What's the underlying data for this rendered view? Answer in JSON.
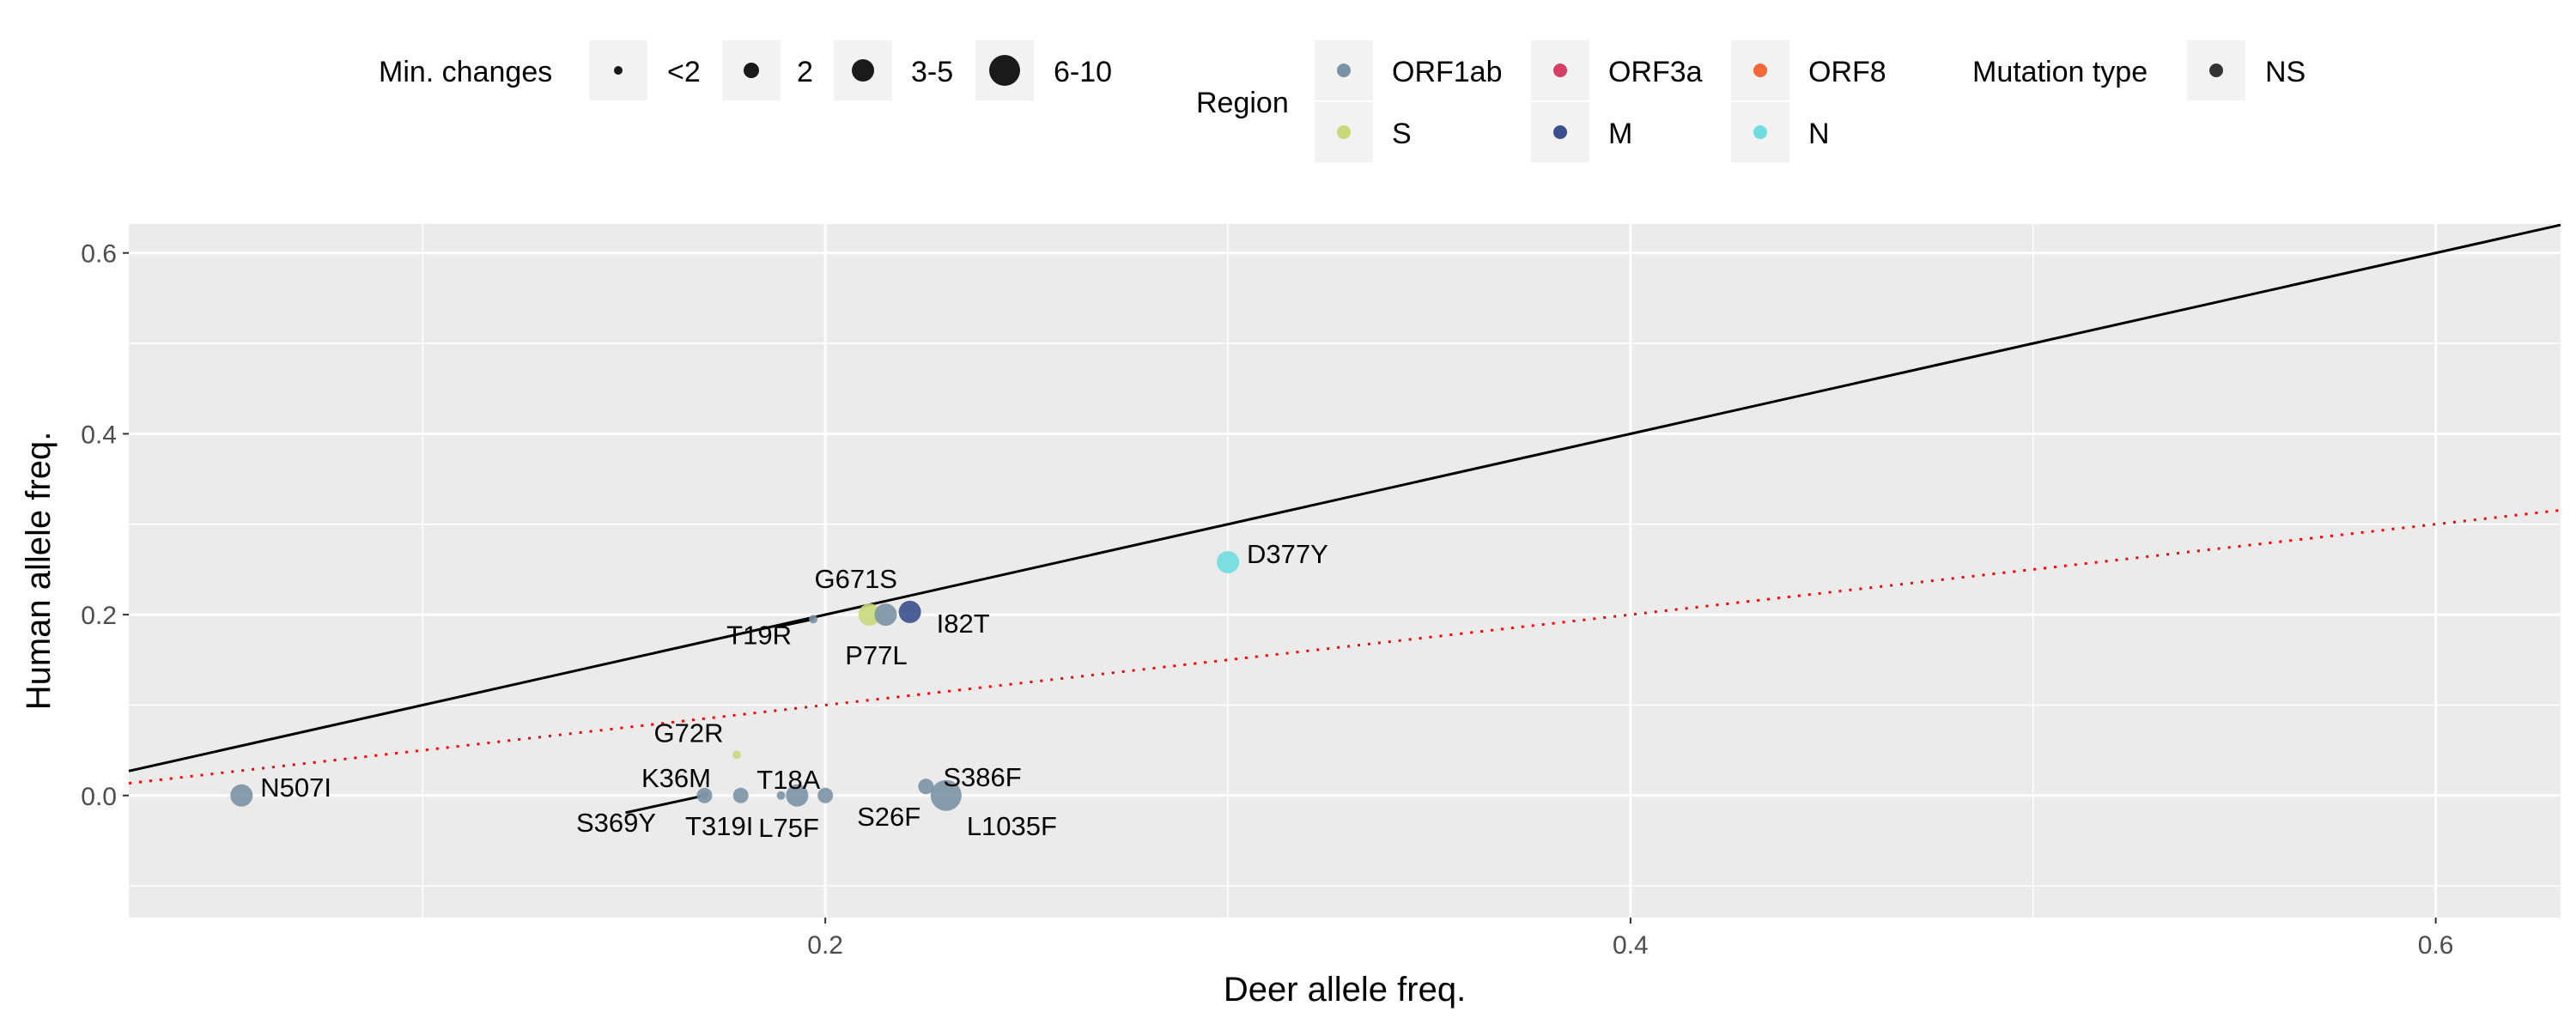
{
  "chart_data": {
    "type": "scatter",
    "xlabel": "Deer allele freq.",
    "ylabel": "Human allele freq.",
    "xlim": [
      0.027,
      0.631
    ],
    "ylim": [
      -0.135,
      0.632
    ],
    "x_ticks": [
      0.2,
      0.4,
      0.6
    ],
    "x_tick_labels": [
      "0.2",
      "0.4",
      "0.6"
    ],
    "y_ticks": [
      0.0,
      0.2,
      0.4,
      0.6
    ],
    "y_tick_labels": [
      "0.0",
      "0.2",
      "0.4",
      "0.6"
    ],
    "grid": true,
    "legend_position": "top",
    "reference_lines": [
      {
        "kind": "identity",
        "slope": 1,
        "intercept": 0,
        "color": "#000000",
        "style": "solid"
      },
      {
        "kind": "half",
        "slope": 0.5,
        "intercept": 0,
        "color": "#ff0000",
        "style": "dotted"
      }
    ],
    "legends": {
      "size": {
        "title": "Min. changes",
        "entries": [
          {
            "label": "<2",
            "radius": 5
          },
          {
            "label": "2",
            "radius": 9
          },
          {
            "label": "3-5",
            "radius": 13
          },
          {
            "label": "6-10",
            "radius": 18
          }
        ]
      },
      "color": {
        "title": "Region",
        "entries": [
          {
            "label": "ORF1ab",
            "color": "#7b93a6"
          },
          {
            "label": "ORF3a",
            "color": "#d53e64"
          },
          {
            "label": "ORF8",
            "color": "#f4673a"
          },
          {
            "label": "S",
            "color": "#c9d97a"
          },
          {
            "label": "M",
            "color": "#3a4f8c"
          },
          {
            "label": "N",
            "color": "#6fdde0"
          }
        ]
      },
      "shape": {
        "title": "Mutation type",
        "entries": [
          {
            "label": "NS",
            "color": "#333333"
          }
        ]
      }
    },
    "points": [
      {
        "label": "N507I",
        "x": 0.055,
        "y": 0.0,
        "region": "ORF1ab",
        "size": "3-5"
      },
      {
        "label": "S369Y",
        "x": 0.17,
        "y": 0.0,
        "region": "ORF1ab",
        "size": "2"
      },
      {
        "label": "K36M",
        "x": 0.17,
        "y": 0.0,
        "region": "ORF1ab",
        "size": "<2"
      },
      {
        "label": "T319I",
        "x": 0.179,
        "y": 0.0,
        "region": "ORF1ab",
        "size": "2"
      },
      {
        "label": "L75F",
        "x": 0.189,
        "y": 0.0,
        "region": "ORF1ab",
        "size": "<2"
      },
      {
        "label": "T18A",
        "x": 0.193,
        "y": 0.0,
        "region": "ORF1ab",
        "size": "3-5"
      },
      {
        "label": "S26F",
        "x": 0.2,
        "y": 0.0,
        "region": "ORF1ab",
        "size": "2"
      },
      {
        "label": "S386F",
        "x": 0.225,
        "y": 0.01,
        "region": "ORF1ab",
        "size": "2"
      },
      {
        "label": "L1035F",
        "x": 0.23,
        "y": 0.0,
        "region": "ORF1ab",
        "size": "6-10"
      },
      {
        "label": "G72R",
        "x": 0.178,
        "y": 0.045,
        "region": "S",
        "size": "<2"
      },
      {
        "label": "T19R",
        "x": 0.197,
        "y": 0.195,
        "region": "ORF1ab",
        "size": "<2"
      },
      {
        "label": "G671S",
        "x": 0.211,
        "y": 0.2,
        "region": "S",
        "size": "3-5"
      },
      {
        "label": "P77L",
        "x": 0.215,
        "y": 0.2,
        "region": "ORF1ab",
        "size": "3-5"
      },
      {
        "label": "I82T",
        "x": 0.221,
        "y": 0.203,
        "region": "M",
        "size": "3-5"
      },
      {
        "label": "D377Y",
        "x": 0.3,
        "y": 0.258,
        "region": "N",
        "size": "3-5"
      }
    ]
  }
}
